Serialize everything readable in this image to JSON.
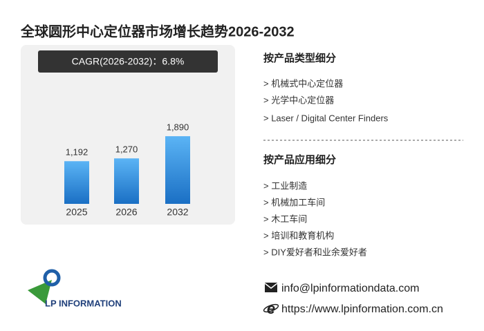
{
  "title": "全球圆形中心定位器市场增长趋势2026-2032",
  "chart_data": {
    "type": "bar",
    "annotation": "CAGR(2026-2032)：6.8%",
    "categories": [
      "2025",
      "2026",
      "2032"
    ],
    "values": [
      1192,
      1270,
      1890
    ],
    "value_labels": [
      "1,192",
      "1,270",
      "1,890"
    ],
    "color": "#2b8de0"
  },
  "segments": [
    {
      "heading": "按产品类型细分",
      "items": [
        "> 机械式中心定位器",
        "> 光学中心定位器",
        "> Laser / Digital Center Finders"
      ]
    },
    {
      "heading": "按产品应用细分",
      "items": [
        "> 工业制造",
        "> 机械加工车间",
        "> 木工车间",
        "> 培训和教育机构",
        "> DIY爱好者和业余爱好者"
      ]
    }
  ],
  "contact": {
    "email": "info@lpinformationdata.com",
    "website": "https://www.lpinformation.com.cn"
  },
  "logo": "LP INFORMATION"
}
